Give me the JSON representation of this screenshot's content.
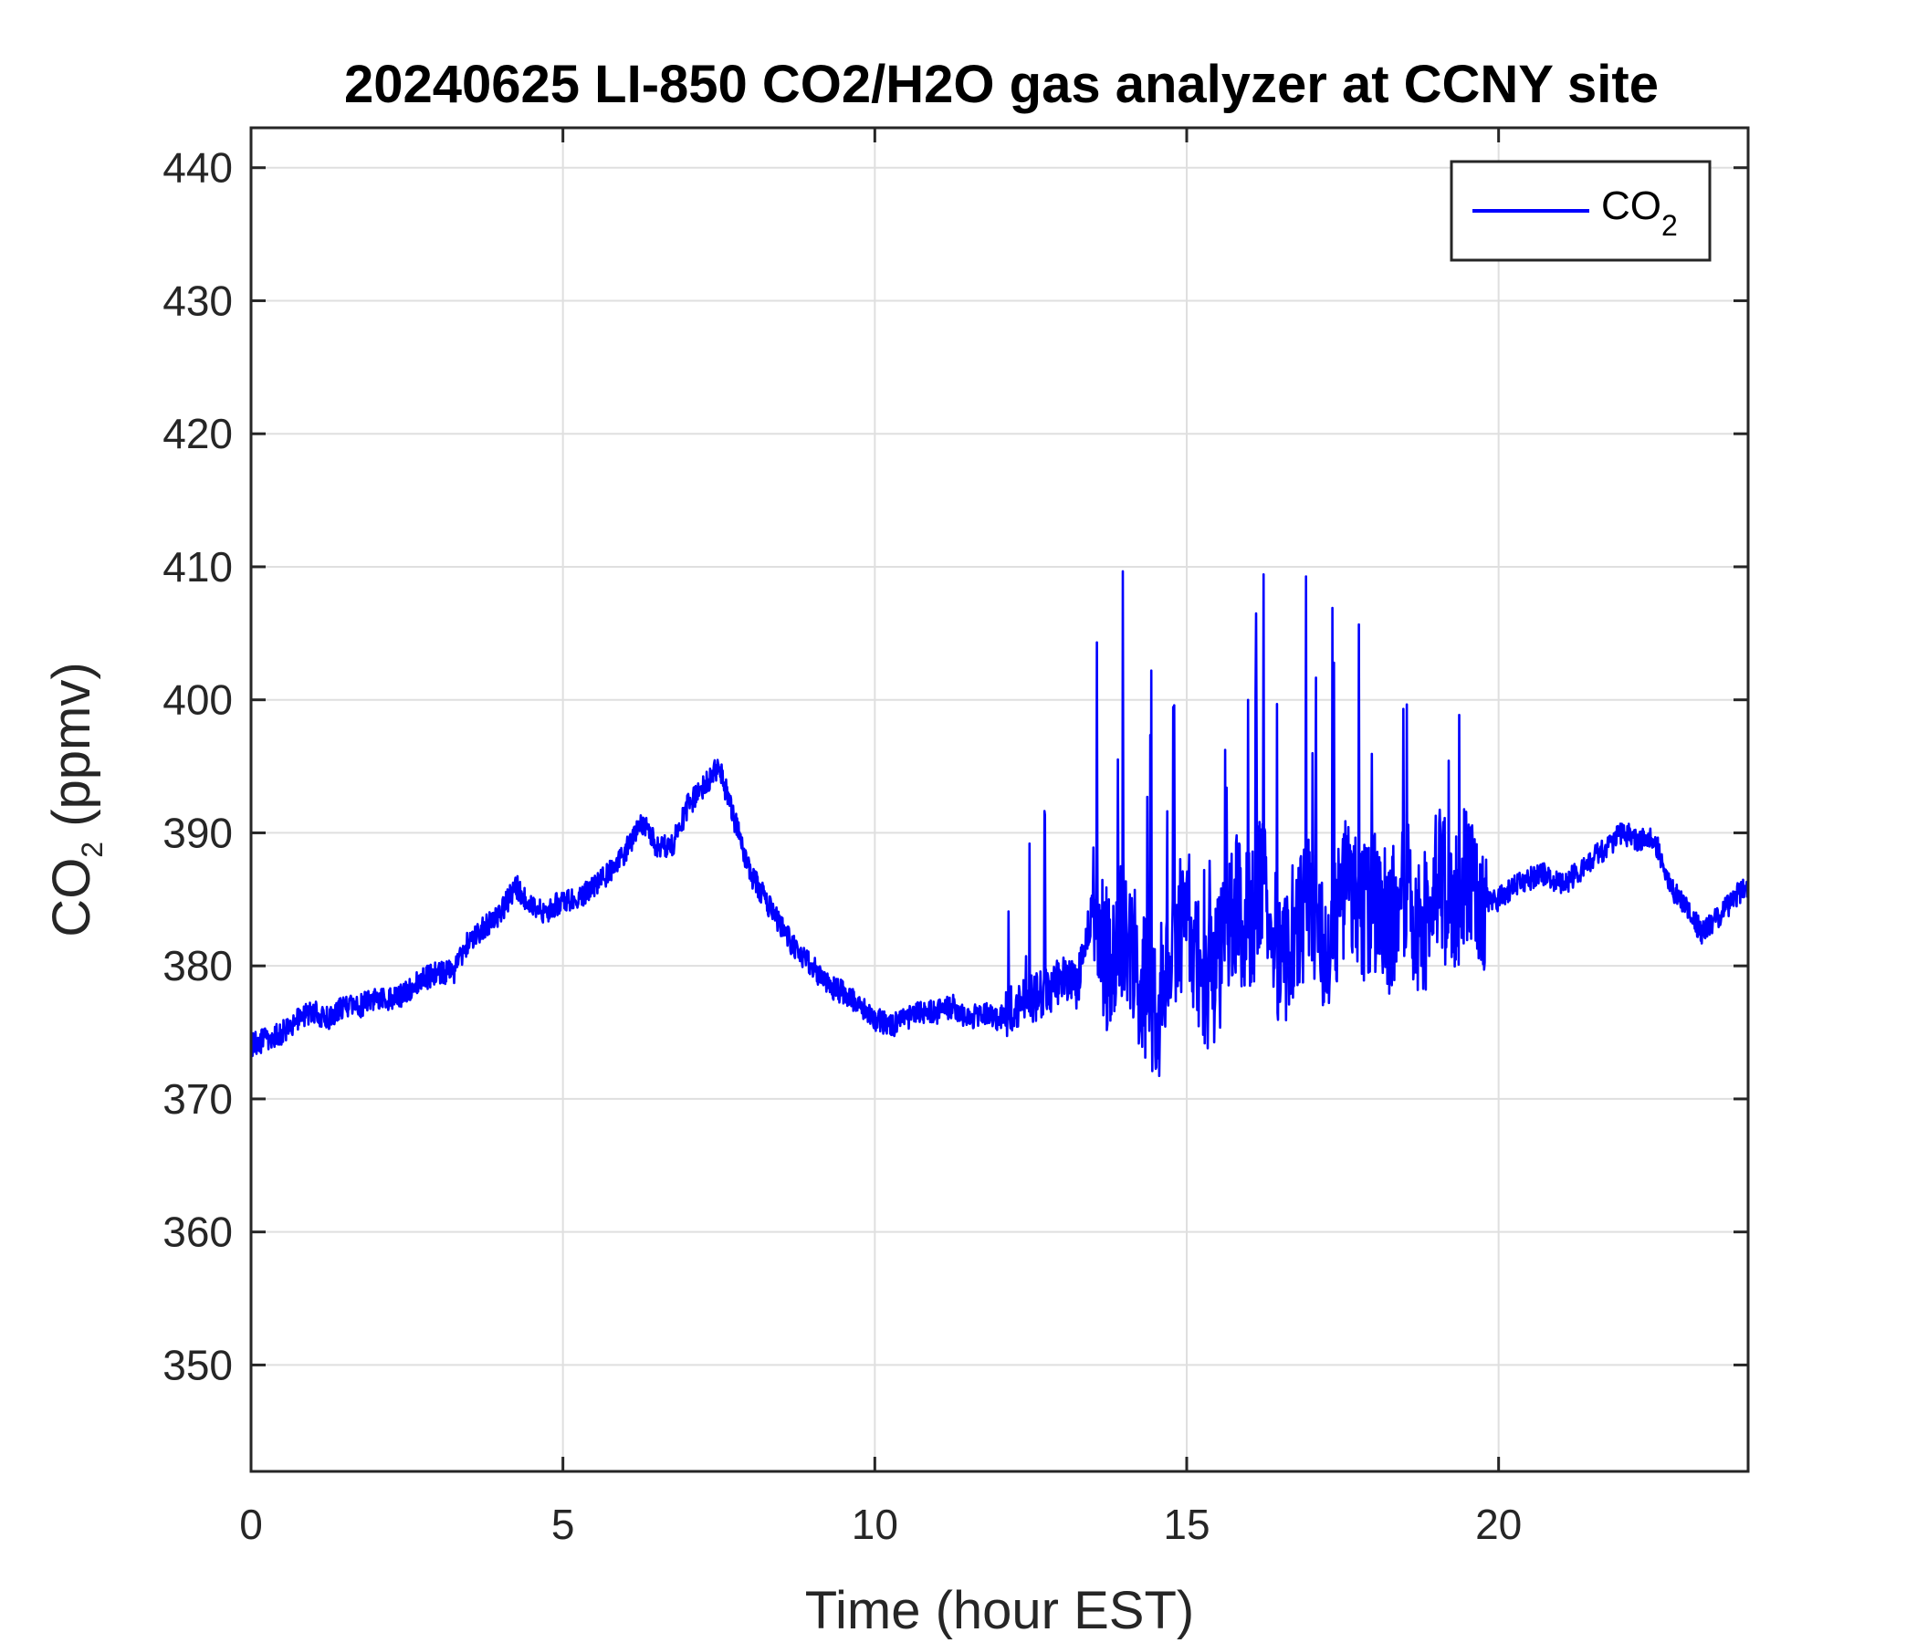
{
  "chart_data": {
    "type": "line",
    "title": "20240625 LI-850 CO2/H2O gas analyzer at CCNY site",
    "xlabel": "Time (hour EST)",
    "ylabel_main": "CO",
    "ylabel_sub": "2",
    "ylabel_rest": " (ppmv)",
    "xlim": [
      0,
      24
    ],
    "ylim": [
      342,
      443
    ],
    "xticks": [
      0,
      5,
      10,
      15,
      20
    ],
    "yticks": [
      350,
      360,
      370,
      380,
      390,
      400,
      410,
      420,
      430,
      440
    ],
    "grid": true,
    "legend_position": "top-right",
    "series": [
      {
        "name_main": "CO",
        "name_sub": "2",
        "color": "#0000ff",
        "x": [
          0.0,
          0.25,
          0.5,
          0.75,
          1.0,
          1.25,
          1.5,
          1.75,
          2.0,
          2.25,
          2.5,
          2.75,
          3.0,
          3.25,
          3.5,
          3.75,
          4.0,
          4.25,
          4.5,
          4.75,
          5.0,
          5.25,
          5.5,
          5.75,
          6.0,
          6.25,
          6.5,
          6.75,
          7.0,
          7.25,
          7.5,
          7.75,
          8.0,
          8.25,
          8.5,
          8.75,
          9.0,
          9.25,
          9.5,
          9.75,
          10.0,
          10.25,
          10.5,
          10.75,
          11.0,
          11.25,
          11.5,
          11.75,
          12.0,
          12.25,
          12.5,
          12.75,
          13.0,
          13.25,
          13.5,
          13.75,
          14.0,
          14.25,
          14.5,
          14.75,
          15.0,
          15.25,
          15.5,
          15.75,
          16.0,
          16.25,
          16.5,
          16.75,
          17.0,
          17.25,
          17.5,
          17.75,
          18.0,
          18.25,
          18.5,
          18.75,
          19.0,
          19.25,
          19.5,
          19.75,
          20.0,
          20.25,
          20.5,
          20.75,
          21.0,
          21.25,
          21.5,
          21.75,
          22.0,
          22.25,
          22.5,
          22.75,
          23.0,
          23.25,
          23.5,
          23.75,
          24.0
        ],
        "values": [
          374,
          374.5,
          375,
          376,
          376.5,
          376,
          377,
          377,
          377.5,
          377.5,
          378,
          379,
          379.5,
          379.5,
          382,
          383,
          384,
          386,
          384.5,
          384,
          385,
          385,
          386,
          387,
          388.5,
          391,
          389,
          389,
          392,
          393.5,
          395,
          391,
          387,
          385,
          383,
          381,
          380,
          378.5,
          378,
          377,
          376,
          375.5,
          376,
          376.5,
          376.5,
          377,
          376,
          376.5,
          376,
          377,
          377.5,
          378,
          379,
          378.5,
          385,
          380,
          383,
          379,
          376,
          381,
          384,
          378,
          380,
          385,
          383,
          387,
          380,
          383,
          385,
          381,
          386,
          384,
          385,
          383,
          386,
          382,
          387,
          384,
          387,
          385,
          385,
          386,
          386.5,
          387,
          386,
          387,
          388,
          389,
          390,
          389.5,
          389.5,
          386,
          384.5,
          382.5,
          383.5,
          385,
          386
        ]
      }
    ]
  }
}
